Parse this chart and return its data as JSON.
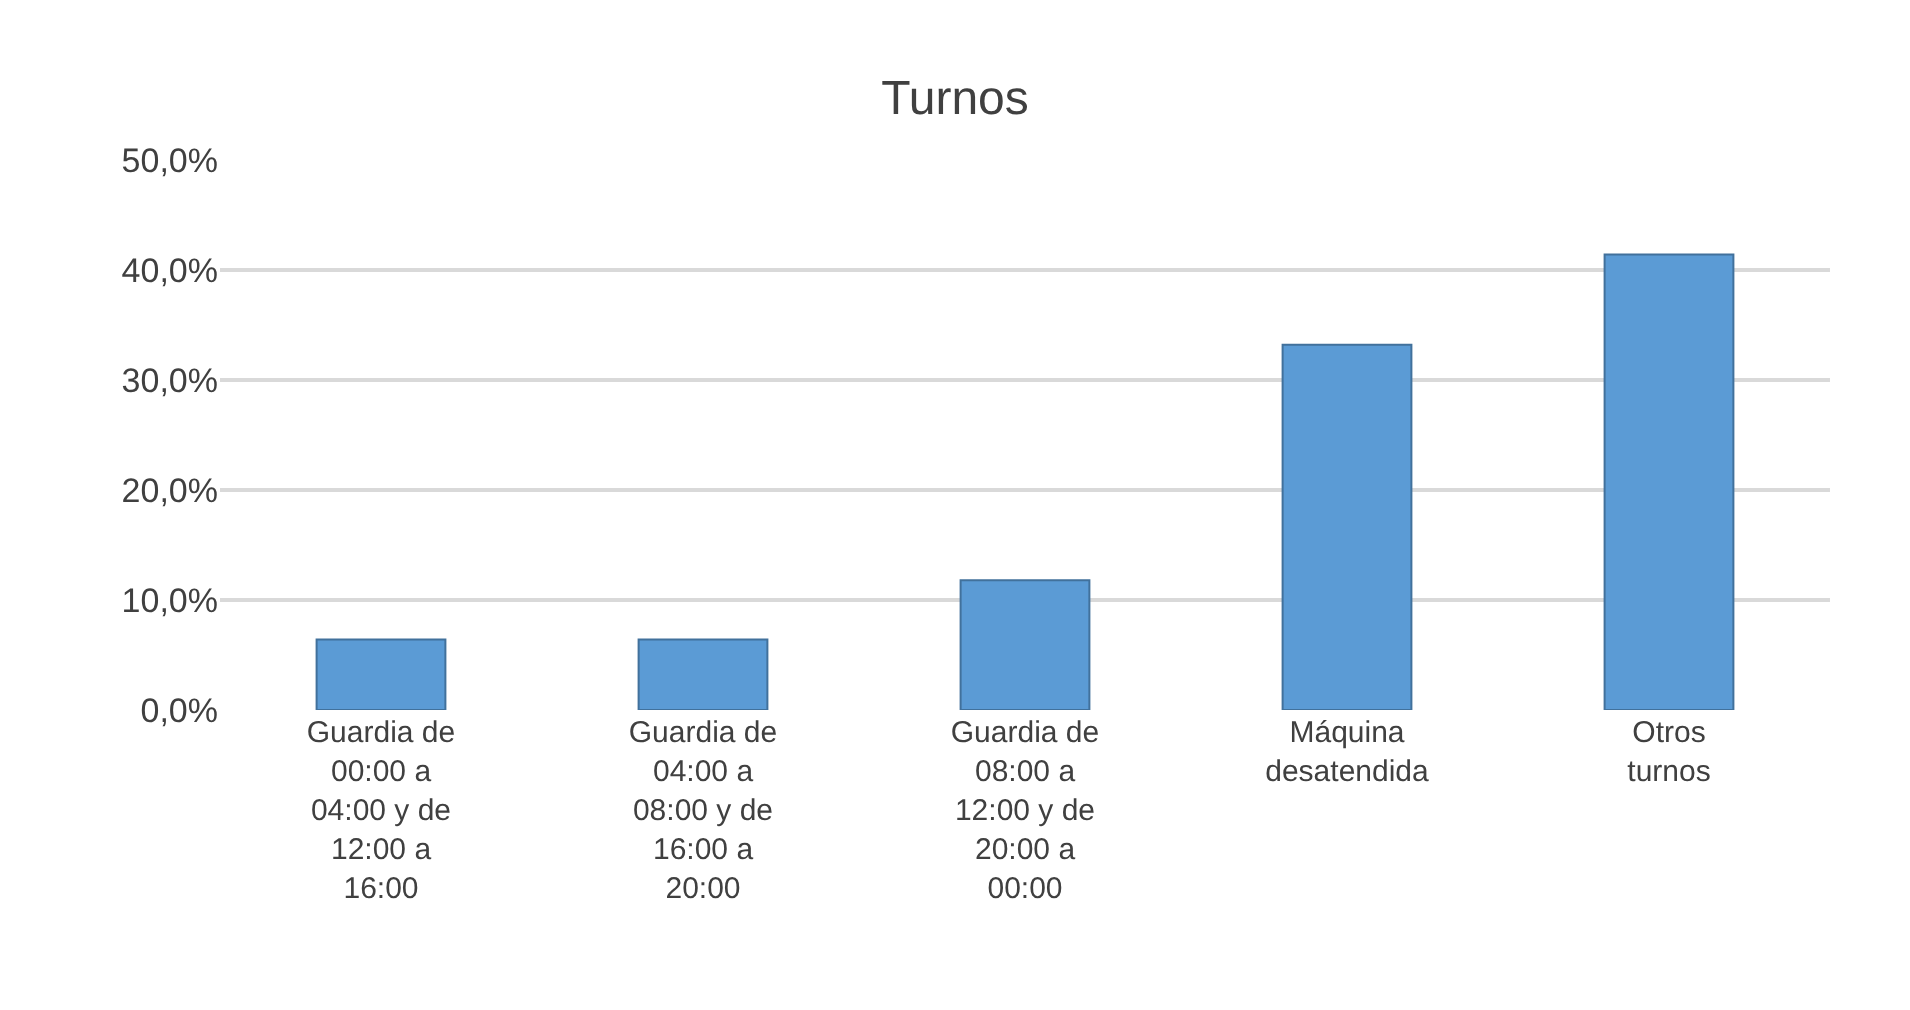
{
  "chart_data": {
    "type": "bar",
    "title": "Turnos",
    "categories": [
      "Guardia de 00:00 a 04:00 y de 12:00 a 16:00",
      "Guardia de 04:00 a 08:00 y de 16:00 a 20:00",
      "Guardia de 08:00 a 12:00 y de 20:00 a 00:00",
      "Máquina desatendida",
      "Otros turnos"
    ],
    "values": [
      6.4,
      6.4,
      11.8,
      33.2,
      41.4
    ],
    "color": "#5b9bd5",
    "ylim": [
      0,
      50
    ],
    "yticks": [
      {
        "value": 0,
        "label": "0,0%"
      },
      {
        "value": 10,
        "label": "10,0%"
      },
      {
        "value": 20,
        "label": "20,0%"
      },
      {
        "value": 30,
        "label": "30,0%"
      },
      {
        "value": 40,
        "label": "40,0%"
      },
      {
        "value": 50,
        "label": "50,0%"
      }
    ],
    "grid": true,
    "legend": false
  }
}
